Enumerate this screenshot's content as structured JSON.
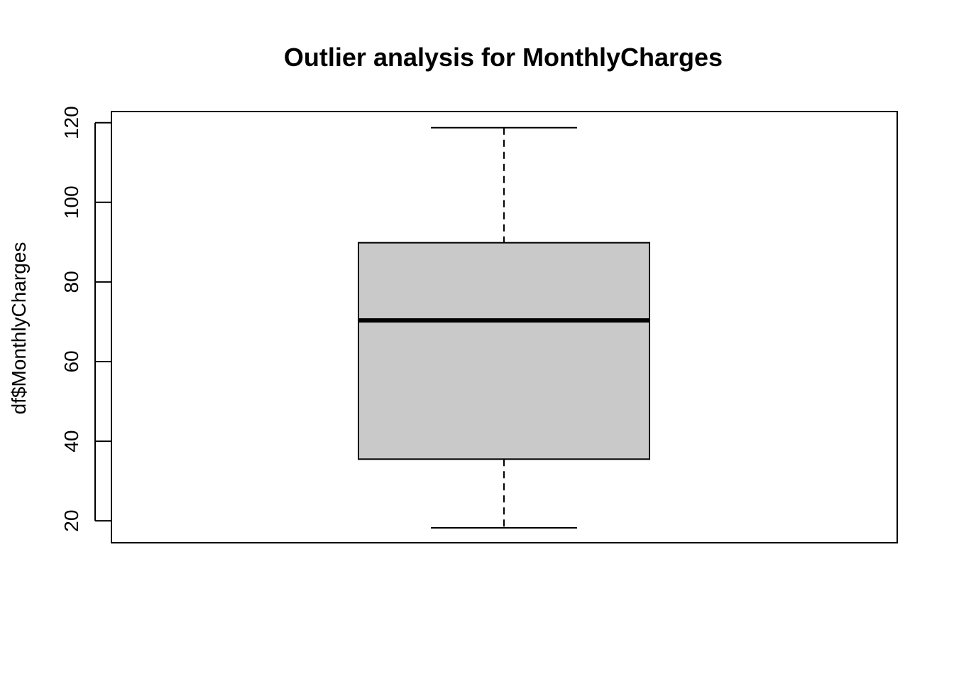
{
  "chart_data": {
    "type": "boxplot",
    "title": "Outlier analysis for MonthlyCharges",
    "xlabel": "",
    "ylabel": "df$MonthlyCharges",
    "ylim": [
      14.5,
      122.8
    ],
    "yticks": [
      20,
      40,
      60,
      80,
      100,
      120
    ],
    "grid": false,
    "box": {
      "whisker_low": 18.25,
      "q1": 35.5,
      "median": 70.35,
      "q3": 89.85,
      "whisker_high": 118.75
    },
    "colors": {
      "box_fill": "#c9c9c9",
      "stroke": "#000000"
    }
  }
}
